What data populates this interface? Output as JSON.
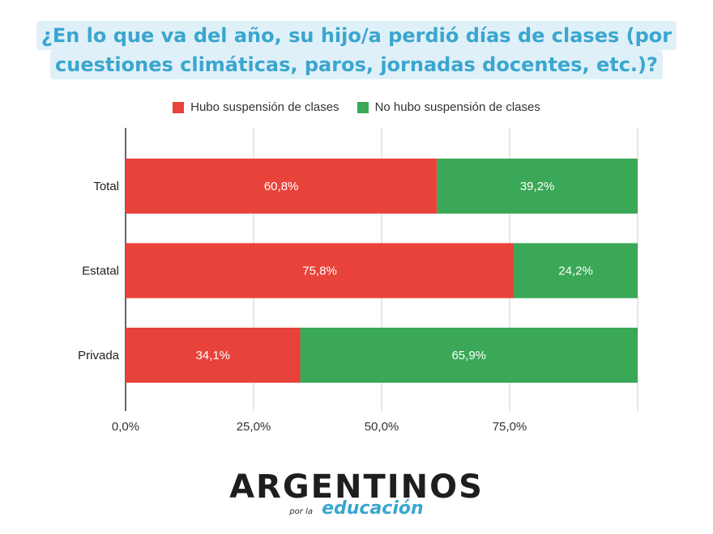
{
  "title": {
    "line1": "¿En lo que va del año, su hijo/a perdió días de clases (por",
    "line2": "cuestiones climáticas, paros, jornadas docentes, etc.)?"
  },
  "colors": {
    "series1": "#e8433a",
    "series2": "#3aa856",
    "grid": "#cccccc",
    "axis": "#333333"
  },
  "chart_data": {
    "type": "bar",
    "orientation": "horizontal",
    "stacked": true,
    "categories": [
      "Total",
      "Estatal",
      "Privada"
    ],
    "series": [
      {
        "name": "Hubo suspensión de clases",
        "values": [
          60.8,
          75.8,
          34.1
        ],
        "labels": [
          "60,8%",
          "75,8%",
          "34,1%"
        ]
      },
      {
        "name": "No hubo suspensión de clases",
        "values": [
          39.2,
          24.2,
          65.9
        ],
        "labels": [
          "39,2%",
          "24,2%",
          "65,9%"
        ]
      }
    ],
    "xlim": [
      0,
      100
    ],
    "x_ticks": [
      0,
      25,
      50,
      75,
      100
    ],
    "x_tick_labels": [
      "0,0%",
      "25,0%",
      "50,0%",
      "75,0%",
      ""
    ],
    "grid": true,
    "legend_position": "top"
  },
  "logo": {
    "main": "ARGENTINOS",
    "por_la": "por la",
    "sub": "educación"
  }
}
